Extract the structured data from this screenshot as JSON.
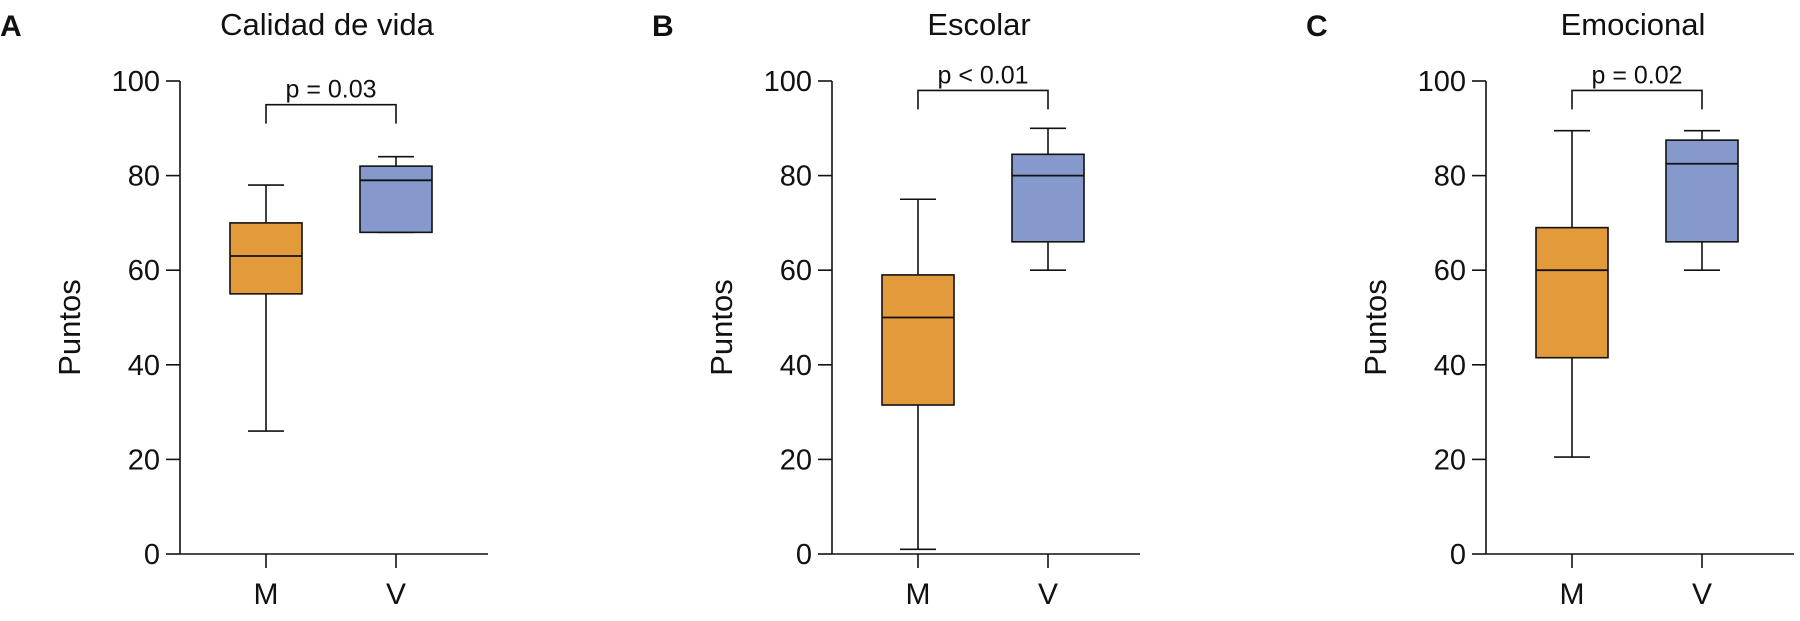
{
  "chart_data": [
    {
      "panel": "A",
      "type": "box",
      "title": "Calidad de vida",
      "ylabel": "Puntos",
      "xlabel": "",
      "ylim": [
        0,
        100
      ],
      "yticks": [
        0,
        20,
        40,
        60,
        80,
        100
      ],
      "categories": [
        "M",
        "V"
      ],
      "boxes": [
        {
          "category": "M",
          "min": 26,
          "q1": 55,
          "median": 63,
          "q3": 70,
          "max": 78,
          "color": "#E39A3B"
        },
        {
          "category": "V",
          "min": 68,
          "q1": 68,
          "median": 79,
          "q3": 82,
          "max": 84,
          "color": "#8599CC"
        }
      ],
      "annotation": {
        "text": "p = 0.03",
        "bracket_y": 95,
        "tick_bottom": 91
      }
    },
    {
      "panel": "B",
      "type": "box",
      "title": "Escolar",
      "ylabel": "Puntos",
      "xlabel": "",
      "ylim": [
        0,
        100
      ],
      "yticks": [
        0,
        20,
        40,
        60,
        80,
        100
      ],
      "categories": [
        "M",
        "V"
      ],
      "boxes": [
        {
          "category": "M",
          "min": 1,
          "q1": 31.5,
          "median": 50,
          "q3": 59,
          "max": 75,
          "color": "#E39A3B"
        },
        {
          "category": "V",
          "min": 60,
          "q1": 66,
          "median": 80,
          "q3": 84.5,
          "max": 90,
          "color": "#8599CC"
        }
      ],
      "annotation": {
        "text": "p < 0.01",
        "bracket_y": 98,
        "tick_bottom": 94
      }
    },
    {
      "panel": "C",
      "type": "box",
      "title": "Emocional",
      "ylabel": "Puntos",
      "xlabel": "",
      "ylim": [
        0,
        100
      ],
      "yticks": [
        0,
        20,
        40,
        60,
        80,
        100
      ],
      "categories": [
        "M",
        "V"
      ],
      "boxes": [
        {
          "category": "M",
          "min": 20.5,
          "q1": 41.5,
          "median": 60,
          "q3": 69,
          "max": 89.5,
          "color": "#E39A3B"
        },
        {
          "category": "V",
          "min": 60,
          "q1": 66,
          "median": 82.5,
          "q3": 87.5,
          "max": 89.5,
          "color": "#8599CC"
        }
      ],
      "annotation": {
        "text": "p = 0.02",
        "bracket_y": 98,
        "tick_bottom": 94
      }
    }
  ]
}
